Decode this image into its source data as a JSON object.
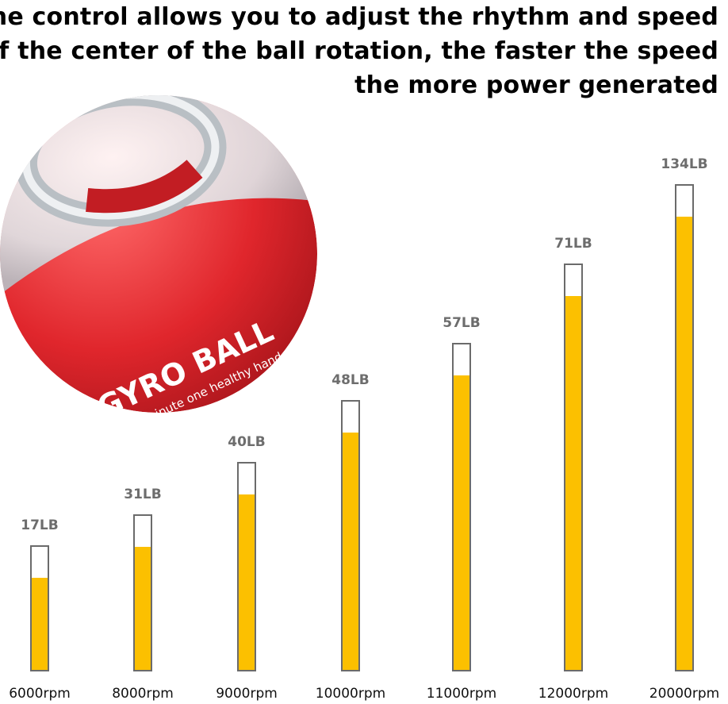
{
  "headline": [
    "The control allows you to adjust the rhythm and speed",
    "of the center of the ball rotation, the faster the speed",
    "the more power generated"
  ],
  "product": {
    "name": "GYRO BALL",
    "tagline": "one minute one healthy hand",
    "colors": {
      "shell": "#e0262c",
      "clear": "#d9dde0"
    }
  },
  "chart_data": {
    "type": "bar",
    "categories": [
      "6000rpm",
      "8000rpm",
      "9000rpm",
      "10000rpm",
      "11000rpm",
      "12000rpm",
      "20000rpm"
    ],
    "values": [
      17,
      31,
      40,
      48,
      57,
      71,
      134
    ],
    "data_labels": [
      "17LB",
      "31LB",
      "40LB",
      "48LB",
      "57LB",
      "71LB",
      "134LB"
    ],
    "unit": "LB",
    "colors": {
      "fill": "#fcc000",
      "outline": "#6b6b6b",
      "label": "#6d6d6d"
    },
    "grid": false,
    "legend": "none"
  }
}
